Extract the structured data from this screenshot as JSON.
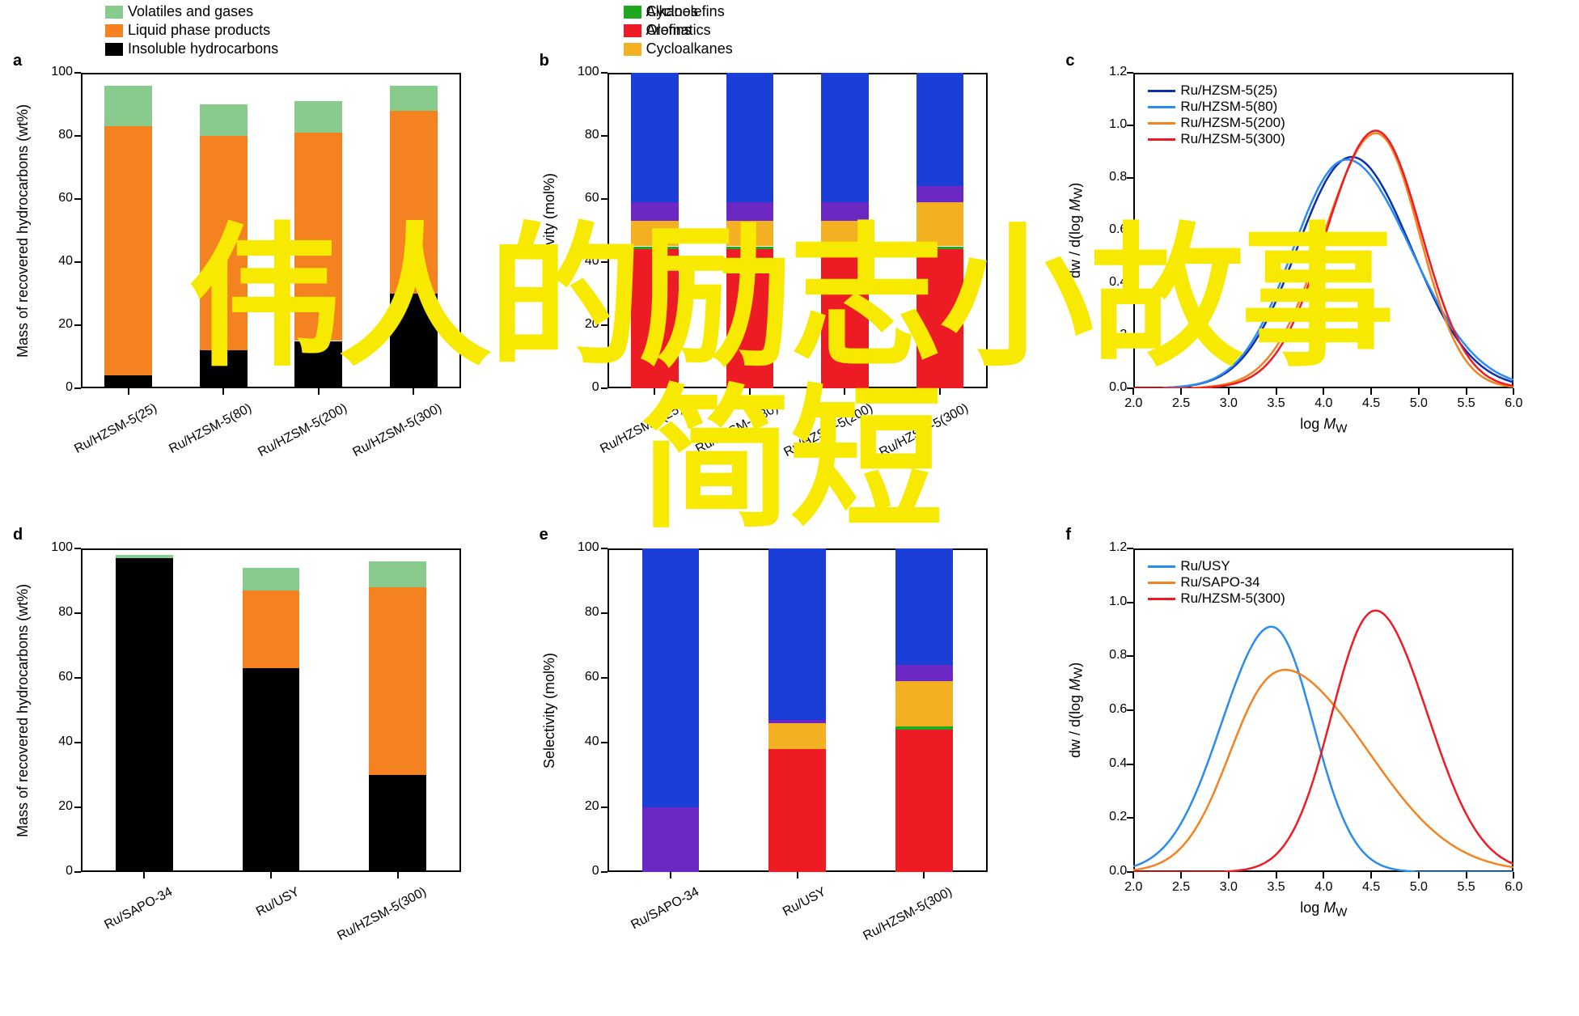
{
  "overlay": {
    "line1": "伟人的励志小故事",
    "line2": "简短"
  },
  "colors": {
    "volatiles": "#89cb8c",
    "liquid": "#f58220",
    "insoluble": "#000000",
    "alkanes": "#1b3ed6",
    "olefins": "#6b28c2",
    "cycloalkanes": "#f2b022",
    "cycloolefins": "#1da81d",
    "aromatics": "#ed1c24",
    "curve_blue_dark": "#0b2fae",
    "curve_blue_light": "#2a8bf0",
    "curve_orange": "#f58220",
    "curve_red": "#ed1c24"
  },
  "typography": {
    "axis_label_fontsize": 18,
    "tick_fontsize": 16,
    "panel_label_fontsize": 20
  },
  "panels": {
    "a": {
      "label": "a",
      "type": "stacked_bar",
      "ylabel": "Mass of recovered hydrocarbons (wt%)",
      "ylim": [
        0,
        100
      ],
      "ytick_step": 20,
      "categories": [
        "Ru/HZSM-5(25)",
        "Ru/HZSM-5(80)",
        "Ru/HZSM-5(200)",
        "Ru/HZSM-5(300)"
      ],
      "series_order": [
        "insoluble",
        "liquid",
        "volatiles"
      ],
      "data": [
        {
          "insoluble": 4,
          "liquid": 79,
          "volatiles": 13
        },
        {
          "insoluble": 12,
          "liquid": 68,
          "volatiles": 10
        },
        {
          "insoluble": 15,
          "liquid": 66,
          "volatiles": 10
        },
        {
          "insoluble": 30,
          "liquid": 58,
          "volatiles": 8
        }
      ],
      "bar_width": 0.5,
      "legend": {
        "items": [
          {
            "color_key": "volatiles",
            "label": "Volatiles and gases"
          },
          {
            "color_key": "liquid",
            "label": "Liquid phase products"
          },
          {
            "color_key": "insoluble",
            "label": "Insoluble hydrocarbons"
          }
        ]
      }
    },
    "b": {
      "label": "b",
      "type": "stacked_bar",
      "ylabel": "Selectivity (mol%)",
      "ylim": [
        0,
        100
      ],
      "ytick_step": 20,
      "categories": [
        "Ru/HZSM-5(25)",
        "Ru/HZSM-5(80)",
        "Ru/HZSM-5(200)",
        "Ru/HZSM-5(300)"
      ],
      "series_order": [
        "aromatics",
        "cycloolefins",
        "cycloalkanes",
        "olefins",
        "alkanes"
      ],
      "data": [
        {
          "aromatics": 44,
          "cycloolefins": 1,
          "cycloalkanes": 8,
          "olefins": 6,
          "alkanes": 41
        },
        {
          "aromatics": 44,
          "cycloolefins": 1,
          "cycloalkanes": 8,
          "olefins": 6,
          "alkanes": 41
        },
        {
          "aromatics": 44,
          "cycloolefins": 1,
          "cycloalkanes": 8,
          "olefins": 6,
          "alkanes": 41
        },
        {
          "aromatics": 44,
          "cycloolefins": 1,
          "cycloalkanes": 14,
          "olefins": 5,
          "alkanes": 36
        }
      ],
      "bar_width": 0.5,
      "legend": {
        "columns": [
          [
            {
              "color_key": "alkanes",
              "label": "Alkanes"
            },
            {
              "color_key": "olefins",
              "label": "Olefins"
            },
            {
              "color_key": "cycloalkanes",
              "label": "Cycloalkanes"
            }
          ],
          [
            {
              "color_key": "cycloolefins",
              "label": "Cycloolefins"
            },
            {
              "color_key": "aromatics",
              "label": "Aromatics"
            }
          ]
        ]
      }
    },
    "c": {
      "label": "c",
      "type": "curves",
      "ylabel": "dw / d(log Mw)",
      "xlabel": "log Mw",
      "xlim": [
        2.0,
        6.0
      ],
      "xtick_step": 0.5,
      "ylim": [
        0.0,
        1.2
      ],
      "ytick_step": 0.2,
      "traces": [
        {
          "label": "Ru/HZSM-5(25)",
          "color_key": "curve_blue_dark",
          "peak_x": 4.3,
          "peak_y": 0.88,
          "sigma": 0.6,
          "skew": 0.05
        },
        {
          "label": "Ru/HZSM-5(80)",
          "color_key": "curve_blue_light",
          "peak_x": 4.25,
          "peak_y": 0.87,
          "sigma": 0.62,
          "skew": 0.1
        },
        {
          "label": "Ru/HZSM-5(200)",
          "color_key": "curve_orange",
          "peak_x": 4.55,
          "peak_y": 0.97,
          "sigma": 0.5,
          "skew": -0.1
        },
        {
          "label": "Ru/HZSM-5(300)",
          "color_key": "curve_red",
          "peak_x": 4.55,
          "peak_y": 0.98,
          "sigma": 0.5,
          "skew": -0.05
        }
      ]
    },
    "d": {
      "label": "d",
      "type": "stacked_bar",
      "ylabel": "Mass of recovered hydrocarbons (wt%)",
      "ylim": [
        0,
        100
      ],
      "ytick_step": 20,
      "categories": [
        "Ru/SAPO-34",
        "Ru/USY",
        "Ru/HZSM-5(300)"
      ],
      "series_order": [
        "insoluble",
        "liquid",
        "volatiles"
      ],
      "data": [
        {
          "insoluble": 97,
          "liquid": 0,
          "volatiles": 1
        },
        {
          "insoluble": 63,
          "liquid": 24,
          "volatiles": 7
        },
        {
          "insoluble": 30,
          "liquid": 58,
          "volatiles": 8
        }
      ],
      "bar_width": 0.45
    },
    "e": {
      "label": "e",
      "type": "stacked_bar",
      "ylabel": "Selectivity (mol%)",
      "ylim": [
        0,
        100
      ],
      "ytick_step": 20,
      "categories": [
        "Ru/SAPO-34",
        "Ru/USY",
        "Ru/HZSM-5(300)"
      ],
      "series_order": [
        "aromatics",
        "cycloolefins",
        "cycloalkanes",
        "olefins",
        "alkanes"
      ],
      "data": [
        {
          "aromatics": 0,
          "cycloolefins": 0,
          "cycloalkanes": 0,
          "olefins": 20,
          "alkanes": 80
        },
        {
          "aromatics": 38,
          "cycloolefins": 0,
          "cycloalkanes": 8,
          "olefins": 1,
          "alkanes": 53
        },
        {
          "aromatics": 44,
          "cycloolefins": 1,
          "cycloalkanes": 14,
          "olefins": 5,
          "alkanes": 36
        }
      ],
      "bar_width": 0.45
    },
    "f": {
      "label": "f",
      "type": "curves",
      "ylabel": "dw / d(log Mw)",
      "xlabel": "log Mw",
      "xlim": [
        2.0,
        6.0
      ],
      "xtick_step": 0.5,
      "ylim": [
        0.0,
        1.2
      ],
      "ytick_step": 0.2,
      "traces": [
        {
          "label": "Ru/USY",
          "color_key": "curve_blue_light",
          "peak_x": 3.45,
          "peak_y": 0.91,
          "sigma": 0.48,
          "skew": -0.1
        },
        {
          "label": "Ru/SAPO-34",
          "color_key": "curve_orange",
          "peak_x": 3.6,
          "peak_y": 0.75,
          "sigma": 0.7,
          "skew": 0.25
        },
        {
          "label": "Ru/HZSM-5(300)",
          "color_key": "curve_red",
          "peak_x": 4.55,
          "peak_y": 0.97,
          "sigma": 0.5,
          "skew": 0.1
        }
      ]
    }
  }
}
